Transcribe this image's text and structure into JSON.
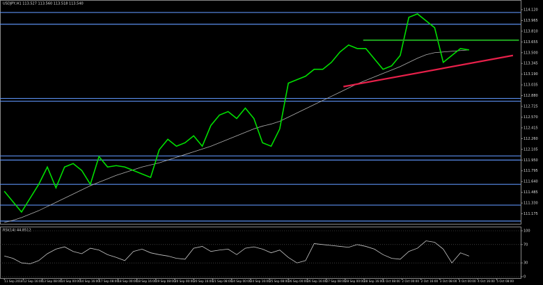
{
  "chart_data": [
    {
      "type": "line",
      "title": "USDJPY,H1  113.527 113.560 113.518 113.540",
      "grid": false,
      "xlim": [
        -0.5,
        60
      ],
      "ylim": [
        111.05,
        114.22
      ],
      "yticks": [
        {
          "value": 111.175,
          "label": "111.175"
        },
        {
          "value": 111.33,
          "label": "111.330"
        },
        {
          "value": 111.485,
          "label": "111.485"
        },
        {
          "value": 111.64,
          "label": "111.640"
        },
        {
          "value": 111.795,
          "label": "111.795"
        },
        {
          "value": 111.95,
          "label": "111.950"
        },
        {
          "value": 112.105,
          "label": "112.105"
        },
        {
          "value": 112.26,
          "label": "112.260"
        },
        {
          "value": 112.415,
          "label": "112.415"
        },
        {
          "value": 112.57,
          "label": "112.570"
        },
        {
          "value": 112.725,
          "label": "112.725"
        },
        {
          "value": 112.88,
          "label": "112.880"
        },
        {
          "value": 113.035,
          "label": "113.035"
        },
        {
          "value": 113.19,
          "label": "113.190"
        },
        {
          "value": 113.345,
          "label": "113.345"
        },
        {
          "value": 113.5,
          "label": "113.500"
        },
        {
          "value": 113.655,
          "label": "113.655"
        },
        {
          "value": 113.81,
          "label": "113.810"
        },
        {
          "value": 113.965,
          "label": "113.965"
        },
        {
          "value": 114.12,
          "label": "114.120"
        }
      ],
      "series": [
        {
          "color": "#00e000",
          "values": [
            111.5,
            111.35,
            111.2,
            111.4,
            111.6,
            111.85,
            111.55,
            111.85,
            111.9,
            111.8,
            111.6,
            112.0,
            111.85,
            111.87,
            111.85,
            111.8,
            111.75,
            111.7,
            112.1,
            112.25,
            112.15,
            112.2,
            112.3,
            112.15,
            112.45,
            112.6,
            112.65,
            112.55,
            112.7,
            112.55,
            112.2,
            112.15,
            112.4,
            113.06,
            113.11,
            113.16,
            113.26,
            113.26,
            113.36,
            113.51,
            113.61,
            113.56,
            113.56,
            113.41,
            113.26,
            113.31,
            113.46,
            114.01,
            114.06,
            113.96,
            113.86,
            113.36,
            113.46,
            113.56,
            113.54
          ]
        },
        {
          "color": "#b0b0b0",
          "values": [
            111.05,
            111.08,
            111.12,
            111.17,
            111.22,
            111.28,
            111.34,
            111.4,
            111.46,
            111.52,
            111.58,
            111.63,
            111.68,
            111.73,
            111.77,
            111.81,
            111.85,
            111.88,
            111.91,
            111.95,
            111.99,
            112.03,
            112.07,
            112.11,
            112.15,
            112.2,
            112.25,
            112.3,
            112.35,
            112.4,
            112.44,
            112.47,
            112.51,
            112.57,
            112.63,
            112.69,
            112.75,
            112.81,
            112.87,
            112.93,
            112.99,
            113.05,
            113.1,
            113.15,
            113.2,
            113.25,
            113.3,
            113.36,
            113.42,
            113.47,
            113.5,
            113.51,
            113.52,
            113.53,
            113.54
          ]
        }
      ],
      "hlines": [
        {
          "value": 114.08,
          "color": "#5b8ff0"
        },
        {
          "value": 113.91,
          "color": "#5b8ff0"
        },
        {
          "value": 112.84,
          "color": "#5b8ff0"
        },
        {
          "value": 112.8,
          "color": "#5b8ff0"
        },
        {
          "value": 112.01,
          "color": "#5b8ff0"
        },
        {
          "value": 111.95,
          "color": "#5b8ff0"
        },
        {
          "value": 111.6,
          "color": "#5b8ff0"
        },
        {
          "value": 111.3,
          "color": "#5b8ff0"
        },
        {
          "value": 111.07,
          "color": "#5b8ff0"
        }
      ],
      "trendlines": [
        {
          "x": [
            41.7,
            59.8
          ],
          "y": [
            113.68,
            113.68
          ],
          "color": "#1f9e1f"
        },
        {
          "x": [
            39.4,
            59.1
          ],
          "y": [
            113.01,
            113.46
          ],
          "color": "#e8204a"
        }
      ]
    },
    {
      "type": "line",
      "title": "RSI(14) 44.8512",
      "grid": true,
      "xlim": [
        -0.5,
        60
      ],
      "ylim": [
        0,
        100
      ],
      "yticks": [
        0,
        30,
        70,
        100
      ],
      "series": [
        {
          "color": "#c8c8c8",
          "values": [
            45,
            40,
            30,
            28,
            35,
            50,
            60,
            65,
            55,
            50,
            62,
            58,
            48,
            42,
            35,
            55,
            60,
            52,
            48,
            45,
            40,
            38,
            62,
            66,
            55,
            58,
            60,
            48,
            62,
            65,
            60,
            52,
            58,
            42,
            30,
            35,
            72,
            70,
            68,
            66,
            64,
            70,
            66,
            60,
            48,
            40,
            38,
            55,
            62,
            78,
            75,
            60,
            30,
            52,
            44.8512
          ]
        }
      ],
      "xticks": [
        {
          "value": 0,
          "label": "11 Sep 2018"
        },
        {
          "value": 2.2,
          "label": "12 Sep 16:00"
        },
        {
          "value": 4.4,
          "label": "13 Sep 08:00"
        },
        {
          "value": 6.6,
          "label": "14 Sep 00:00"
        },
        {
          "value": 8.8,
          "label": "14 Sep 16:00"
        },
        {
          "value": 11,
          "label": "17 Sep 08:00"
        },
        {
          "value": 13.2,
          "label": "18 Sep 00:00"
        },
        {
          "value": 15.4,
          "label": "18 Sep 16:00"
        },
        {
          "value": 17.6,
          "label": "19 Sep 08:00"
        },
        {
          "value": 19.8,
          "label": "20 Sep 00:00"
        },
        {
          "value": 22,
          "label": "20 Sep 16:00"
        },
        {
          "value": 24.2,
          "label": "21 Sep 08:00"
        },
        {
          "value": 26.4,
          "label": "24 Sep 00:00"
        },
        {
          "value": 28.6,
          "label": "24 Sep 16:00"
        },
        {
          "value": 30.8,
          "label": "25 Sep 08:00"
        },
        {
          "value": 33,
          "label": "26 Sep 00:00"
        },
        {
          "value": 35.2,
          "label": "26 Sep 16:00"
        },
        {
          "value": 37.4,
          "label": "27 Sep 08:00"
        },
        {
          "value": 39.6,
          "label": "28 Sep 00:00"
        },
        {
          "value": 41.8,
          "label": "28 Sep 16:00"
        },
        {
          "value": 44,
          "label": "1 Oct 08:00"
        },
        {
          "value": 46.2,
          "label": "2 Oct 00:00"
        },
        {
          "value": 48.4,
          "label": "2 Oct 16:00"
        },
        {
          "value": 50.6,
          "label": "3 Oct 08:00"
        },
        {
          "value": 52.8,
          "label": "4 Oct 00:00"
        },
        {
          "value": 55,
          "label": "4 Oct 16:00"
        },
        {
          "value": 57.2,
          "label": "5 Oct 08:00"
        }
      ]
    }
  ]
}
